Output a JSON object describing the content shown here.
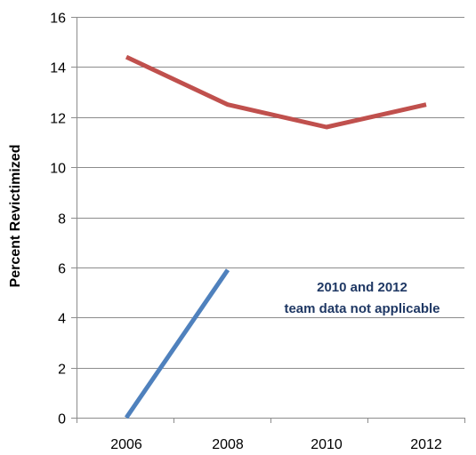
{
  "chart_data": {
    "type": "line",
    "title": "",
    "xlabel": "",
    "ylabel": "Percent Revictimized",
    "categories": [
      "2006",
      "2008",
      "2010",
      "2012"
    ],
    "ylim": [
      0,
      16
    ],
    "yticks": [
      "0",
      "2",
      "4",
      "6",
      "8",
      "10",
      "12",
      "14",
      "16"
    ],
    "grid": true,
    "legend": "none",
    "series": [
      {
        "color": "#c0504d",
        "values": [
          14.4,
          12.5,
          11.6,
          12.5
        ]
      },
      {
        "color": "#4f81bd",
        "values": [
          0,
          5.9,
          null,
          null
        ]
      }
    ],
    "annotations": [
      {
        "lines": [
          "2010 and 2012",
          "team data not applicable"
        ],
        "color": "#1f3864"
      }
    ]
  }
}
